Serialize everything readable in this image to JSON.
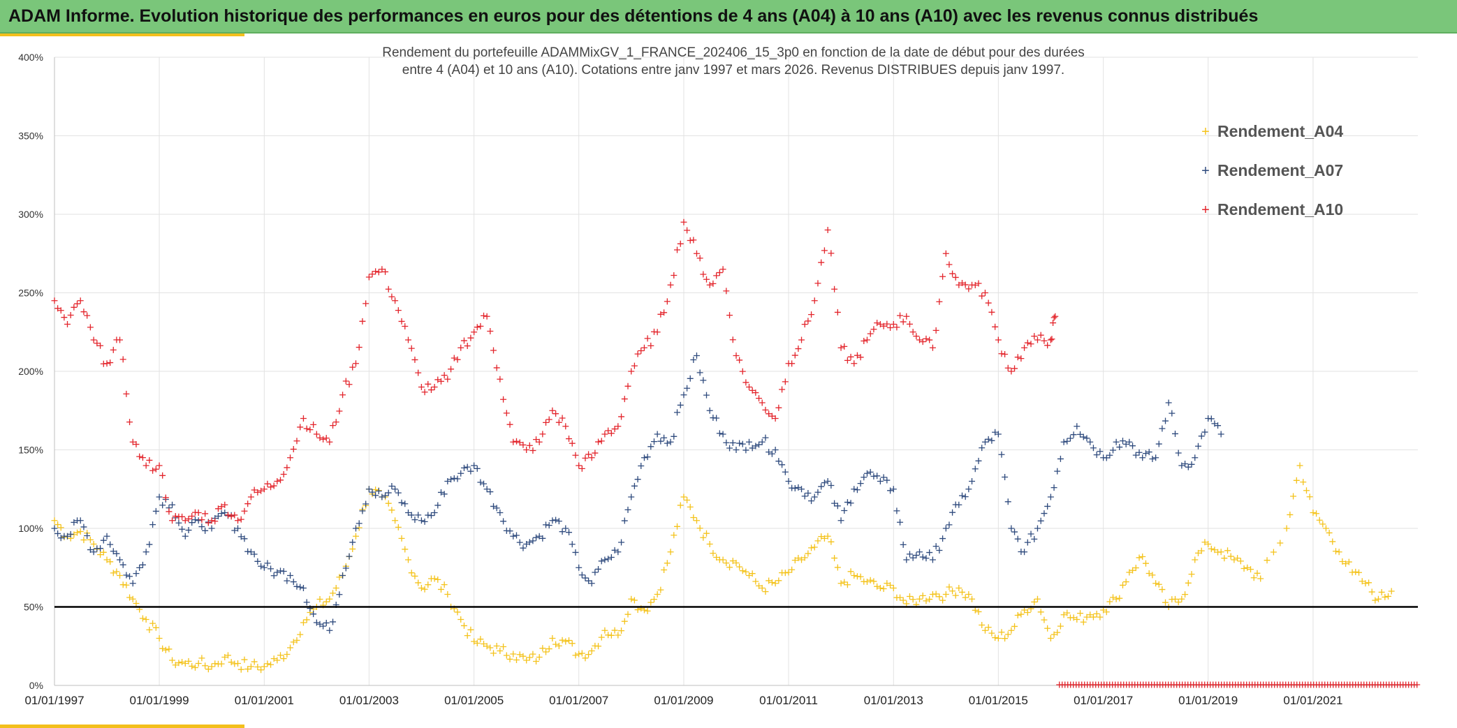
{
  "banner": {
    "title": "ADAM Informe. Evolution historique des performances en euros pour des détentions de 4 ans (A04) à 10 ans (A10) avec les revenus connus distribués"
  },
  "colors": {
    "banner": "#7ac67a",
    "accent": "#f3bf1c",
    "a04": "#f4c21a",
    "a07": "#2e4a7d",
    "a10": "#e3242b",
    "threshold": "#000000"
  },
  "chart_data": {
    "type": "scatter",
    "title_lines": [
      "Rendement du portefeuille ADAMMixGV_1_FRANCE_202406_15_3p0  en fonction de la date de début pour des durées",
      "entre 4 (A04) et 10 ans (A10). Cotations entre janv 1997 et mars 2026. Revenus DISTRIBUES depuis janv 1997."
    ],
    "x_ticks": [
      "01/01/1997",
      "01/01/1999",
      "01/01/2001",
      "01/01/2003",
      "01/01/2005",
      "01/01/2007",
      "01/01/2009",
      "01/01/2011",
      "01/01/2013",
      "01/01/2015",
      "01/01/2017",
      "01/01/2019",
      "01/01/2021"
    ],
    "y_ticks": [
      "0%",
      "50%",
      "100%",
      "150%",
      "200%",
      "250%",
      "300%",
      "350%",
      "400%"
    ],
    "xlim": [
      "1997-01-01",
      "2023-01-01"
    ],
    "ylim": [
      0,
      4.0
    ],
    "grid": true,
    "legend_position": "top-right",
    "threshold": 0.5,
    "marker": "+",
    "series": [
      {
        "name": "Rendement_A04",
        "color": "#f4c21a",
        "points": [
          [
            "1997-01",
            1.05
          ],
          [
            "1997-04",
            0.95
          ],
          [
            "1997-07",
            0.98
          ],
          [
            "1997-10",
            0.9
          ],
          [
            "1998-01",
            0.8
          ],
          [
            "1998-04",
            0.7
          ],
          [
            "1998-07",
            0.55
          ],
          [
            "1998-10",
            0.42
          ],
          [
            "1999-01",
            0.3
          ],
          [
            "1999-04",
            0.16
          ],
          [
            "1999-07",
            0.14
          ],
          [
            "1999-10",
            0.14
          ],
          [
            "2000-01",
            0.12
          ],
          [
            "2000-04",
            0.18
          ],
          [
            "2000-07",
            0.14
          ],
          [
            "2000-10",
            0.12
          ],
          [
            "2001-01",
            0.12
          ],
          [
            "2001-04",
            0.16
          ],
          [
            "2001-07",
            0.24
          ],
          [
            "2001-10",
            0.4
          ],
          [
            "2002-01",
            0.5
          ],
          [
            "2002-04",
            0.55
          ],
          [
            "2002-07",
            0.7
          ],
          [
            "2002-10",
            0.95
          ],
          [
            "2003-01",
            1.25
          ],
          [
            "2003-04",
            1.2
          ],
          [
            "2003-07",
            1.05
          ],
          [
            "2003-10",
            0.8
          ],
          [
            "2004-01",
            0.62
          ],
          [
            "2004-04",
            0.68
          ],
          [
            "2004-07",
            0.58
          ],
          [
            "2004-10",
            0.42
          ],
          [
            "2005-01",
            0.28
          ],
          [
            "2005-04",
            0.25
          ],
          [
            "2005-07",
            0.22
          ],
          [
            "2005-10",
            0.2
          ],
          [
            "2006-01",
            0.16
          ],
          [
            "2006-04",
            0.18
          ],
          [
            "2006-07",
            0.3
          ],
          [
            "2006-10",
            0.28
          ],
          [
            "2007-01",
            0.2
          ],
          [
            "2007-04",
            0.22
          ],
          [
            "2007-07",
            0.35
          ],
          [
            "2007-10",
            0.32
          ],
          [
            "2008-01",
            0.55
          ],
          [
            "2008-04",
            0.48
          ],
          [
            "2008-07",
            0.58
          ],
          [
            "2008-10",
            0.85
          ],
          [
            "2009-01",
            1.2
          ],
          [
            "2009-04",
            1.05
          ],
          [
            "2009-07",
            0.9
          ],
          [
            "2009-10",
            0.8
          ],
          [
            "2010-01",
            0.78
          ],
          [
            "2010-04",
            0.7
          ],
          [
            "2010-07",
            0.62
          ],
          [
            "2010-10",
            0.65
          ],
          [
            "2011-01",
            0.72
          ],
          [
            "2011-04",
            0.8
          ],
          [
            "2011-07",
            0.88
          ],
          [
            "2011-10",
            0.95
          ],
          [
            "2012-01",
            0.65
          ],
          [
            "2012-04",
            0.7
          ],
          [
            "2012-07",
            0.66
          ],
          [
            "2012-10",
            0.62
          ],
          [
            "2013-01",
            0.62
          ],
          [
            "2013-04",
            0.52
          ],
          [
            "2013-07",
            0.55
          ],
          [
            "2013-10",
            0.58
          ],
          [
            "2014-01",
            0.58
          ],
          [
            "2014-04",
            0.62
          ],
          [
            "2014-07",
            0.55
          ],
          [
            "2014-10",
            0.35
          ],
          [
            "2015-01",
            0.3
          ],
          [
            "2015-04",
            0.35
          ],
          [
            "2015-07",
            0.48
          ],
          [
            "2015-10",
            0.55
          ],
          [
            "2016-01",
            0.3
          ],
          [
            "2016-04",
            0.45
          ],
          [
            "2016-07",
            0.42
          ],
          [
            "2016-10",
            0.45
          ],
          [
            "2017-01",
            0.48
          ],
          [
            "2017-04",
            0.55
          ],
          [
            "2017-07",
            0.72
          ],
          [
            "2017-10",
            0.82
          ],
          [
            "2018-01",
            0.65
          ],
          [
            "2018-04",
            0.5
          ],
          [
            "2018-07",
            0.55
          ],
          [
            "2018-10",
            0.8
          ],
          [
            "2019-01",
            0.9
          ],
          [
            "2019-04",
            0.85
          ],
          [
            "2019-07",
            0.8
          ],
          [
            "2019-10",
            0.75
          ],
          [
            "2020-01",
            0.68
          ],
          [
            "2020-07",
            1.0
          ],
          [
            "2020-10",
            1.4
          ],
          [
            "2021-01",
            1.1
          ],
          [
            "2021-04",
            1.0
          ],
          [
            "2021-07",
            0.85
          ],
          [
            "2021-10",
            0.72
          ],
          [
            "2022-01",
            0.65
          ],
          [
            "2022-04",
            0.55
          ],
          [
            "2022-07",
            0.6
          ]
        ]
      },
      {
        "name": "Rendement_A07",
        "color": "#2e4a7d",
        "points": [
          [
            "1997-01",
            1.0
          ],
          [
            "1997-04",
            0.95
          ],
          [
            "1997-07",
            1.05
          ],
          [
            "1997-10",
            0.85
          ],
          [
            "1998-01",
            0.95
          ],
          [
            "1998-04",
            0.8
          ],
          [
            "1998-07",
            0.65
          ],
          [
            "1998-10",
            0.85
          ],
          [
            "1999-01",
            1.2
          ],
          [
            "1999-04",
            1.15
          ],
          [
            "1999-07",
            0.95
          ],
          [
            "1999-10",
            1.05
          ],
          [
            "2000-01",
            1.0
          ],
          [
            "2000-04",
            1.1
          ],
          [
            "2000-07",
            1.0
          ],
          [
            "2000-10",
            0.85
          ],
          [
            "2001-01",
            0.75
          ],
          [
            "2001-04",
            0.72
          ],
          [
            "2001-07",
            0.7
          ],
          [
            "2001-10",
            0.62
          ],
          [
            "2002-01",
            0.4
          ],
          [
            "2002-04",
            0.35
          ],
          [
            "2002-07",
            0.7
          ],
          [
            "2002-10",
            1.0
          ],
          [
            "2003-01",
            1.25
          ],
          [
            "2003-04",
            1.2
          ],
          [
            "2003-07",
            1.25
          ],
          [
            "2003-10",
            1.1
          ],
          [
            "2004-01",
            1.05
          ],
          [
            "2004-04",
            1.1
          ],
          [
            "2004-07",
            1.3
          ],
          [
            "2004-10",
            1.35
          ],
          [
            "2005-01",
            1.4
          ],
          [
            "2005-04",
            1.25
          ],
          [
            "2005-07",
            1.1
          ],
          [
            "2005-10",
            0.95
          ],
          [
            "2006-01",
            0.9
          ],
          [
            "2006-04",
            0.95
          ],
          [
            "2006-07",
            1.05
          ],
          [
            "2006-10",
            1.0
          ],
          [
            "2007-01",
            0.75
          ],
          [
            "2007-04",
            0.65
          ],
          [
            "2007-07",
            0.8
          ],
          [
            "2007-10",
            0.85
          ],
          [
            "2008-01",
            1.2
          ],
          [
            "2008-04",
            1.45
          ],
          [
            "2008-07",
            1.6
          ],
          [
            "2008-10",
            1.55
          ],
          [
            "2009-01",
            1.85
          ],
          [
            "2009-04",
            2.1
          ],
          [
            "2009-07",
            1.75
          ],
          [
            "2009-10",
            1.6
          ],
          [
            "2010-01",
            1.5
          ],
          [
            "2010-04",
            1.55
          ],
          [
            "2010-07",
            1.55
          ],
          [
            "2010-10",
            1.5
          ],
          [
            "2011-01",
            1.3
          ],
          [
            "2011-04",
            1.25
          ],
          [
            "2011-07",
            1.2
          ],
          [
            "2011-10",
            1.3
          ],
          [
            "2012-01",
            1.05
          ],
          [
            "2012-04",
            1.25
          ],
          [
            "2012-07",
            1.35
          ],
          [
            "2012-10",
            1.3
          ],
          [
            "2013-01",
            1.25
          ],
          [
            "2013-04",
            0.8
          ],
          [
            "2013-07",
            0.85
          ],
          [
            "2013-10",
            0.8
          ],
          [
            "2014-01",
            1.0
          ],
          [
            "2014-04",
            1.15
          ],
          [
            "2014-07",
            1.3
          ],
          [
            "2014-10",
            1.55
          ],
          [
            "2015-01",
            1.6
          ],
          [
            "2015-04",
            1.0
          ],
          [
            "2015-07",
            0.85
          ],
          [
            "2015-10",
            1.0
          ],
          [
            "2016-01",
            1.2
          ],
          [
            "2016-04",
            1.55
          ],
          [
            "2016-07",
            1.65
          ],
          [
            "2016-10",
            1.55
          ],
          [
            "2017-01",
            1.45
          ],
          [
            "2017-04",
            1.55
          ],
          [
            "2017-07",
            1.55
          ],
          [
            "2017-10",
            1.45
          ],
          [
            "2018-01",
            1.45
          ],
          [
            "2018-04",
            1.8
          ],
          [
            "2018-07",
            1.4
          ],
          [
            "2018-10",
            1.45
          ],
          [
            "2019-01",
            1.7
          ],
          [
            "2019-04",
            1.6
          ]
        ]
      },
      {
        "name": "Rendement_A10",
        "color": "#e3242b",
        "points": [
          [
            "1997-01",
            2.45
          ],
          [
            "1997-04",
            2.3
          ],
          [
            "1997-07",
            2.45
          ],
          [
            "1997-10",
            2.2
          ],
          [
            "1998-01",
            2.05
          ],
          [
            "1998-04",
            2.2
          ],
          [
            "1998-07",
            1.55
          ],
          [
            "1998-10",
            1.4
          ],
          [
            "1999-01",
            1.4
          ],
          [
            "1999-04",
            1.05
          ],
          [
            "1999-07",
            1.05
          ],
          [
            "1999-10",
            1.1
          ],
          [
            "2000-01",
            1.05
          ],
          [
            "2000-04",
            1.15
          ],
          [
            "2000-07",
            1.05
          ],
          [
            "2000-10",
            1.2
          ],
          [
            "2001-01",
            1.25
          ],
          [
            "2001-04",
            1.3
          ],
          [
            "2001-07",
            1.45
          ],
          [
            "2001-10",
            1.7
          ],
          [
            "2002-01",
            1.6
          ],
          [
            "2002-04",
            1.55
          ],
          [
            "2002-07",
            1.85
          ],
          [
            "2002-10",
            2.05
          ],
          [
            "2003-01",
            2.6
          ],
          [
            "2003-04",
            2.65
          ],
          [
            "2003-07",
            2.45
          ],
          [
            "2003-10",
            2.2
          ],
          [
            "2004-01",
            1.9
          ],
          [
            "2004-04",
            1.9
          ],
          [
            "2004-07",
            1.95
          ],
          [
            "2004-10",
            2.15
          ],
          [
            "2005-01",
            2.25
          ],
          [
            "2005-04",
            2.35
          ],
          [
            "2005-07",
            1.95
          ],
          [
            "2005-10",
            1.55
          ],
          [
            "2006-01",
            1.5
          ],
          [
            "2006-04",
            1.55
          ],
          [
            "2006-07",
            1.75
          ],
          [
            "2006-10",
            1.65
          ],
          [
            "2007-01",
            1.4
          ],
          [
            "2007-04",
            1.45
          ],
          [
            "2007-07",
            1.6
          ],
          [
            "2007-10",
            1.65
          ],
          [
            "2008-01",
            2.0
          ],
          [
            "2008-04",
            2.15
          ],
          [
            "2008-07",
            2.25
          ],
          [
            "2008-10",
            2.55
          ],
          [
            "2009-01",
            2.95
          ],
          [
            "2009-04",
            2.75
          ],
          [
            "2009-07",
            2.55
          ],
          [
            "2009-10",
            2.65
          ],
          [
            "2010-01",
            2.1
          ],
          [
            "2010-04",
            1.9
          ],
          [
            "2010-07",
            1.8
          ],
          [
            "2010-10",
            1.7
          ],
          [
            "2011-01",
            2.05
          ],
          [
            "2011-04",
            2.2
          ],
          [
            "2011-07",
            2.45
          ],
          [
            "2011-10",
            2.9
          ],
          [
            "2012-01",
            2.15
          ],
          [
            "2012-04",
            2.05
          ],
          [
            "2012-07",
            2.2
          ],
          [
            "2012-10",
            2.3
          ],
          [
            "2013-01",
            2.3
          ],
          [
            "2013-04",
            2.35
          ],
          [
            "2013-07",
            2.2
          ],
          [
            "2013-10",
            2.15
          ],
          [
            "2014-01",
            2.75
          ],
          [
            "2014-04",
            2.55
          ],
          [
            "2014-07",
            2.55
          ],
          [
            "2014-10",
            2.5
          ],
          [
            "2015-01",
            2.2
          ],
          [
            "2015-04",
            2.0
          ],
          [
            "2015-07",
            2.15
          ],
          [
            "2015-10",
            2.2
          ],
          [
            "2016-01",
            2.2
          ],
          [
            "2016-02",
            2.35
          ]
        ]
      }
    ]
  }
}
